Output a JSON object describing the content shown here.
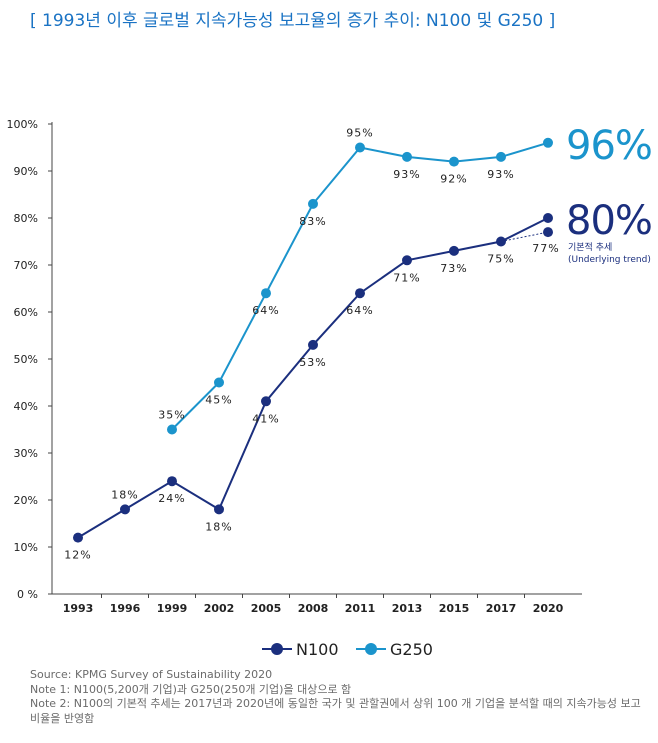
{
  "title": "[ 1993년 이후 글로벌 지속가능성 보고율의 증가 추이: N100 및 G250 ]",
  "chart_data": {
    "type": "line",
    "title": "[ 1993년 이후 글로벌 지속가능성 보고율의 증가 추이: N100 및 G250 ]",
    "categories": [
      "1993",
      "1996",
      "1999",
      "2002",
      "2005",
      "2008",
      "2011",
      "2013",
      "2015",
      "2017",
      "2020"
    ],
    "ylim": [
      0,
      100
    ],
    "yticks": [
      0,
      10,
      20,
      30,
      40,
      50,
      60,
      70,
      80,
      90,
      100
    ],
    "ytick_labels": [
      "0 %",
      "10%",
      "20%",
      "30%",
      "40%",
      "50%",
      "60%",
      "70%",
      "80%",
      "90%",
      "100%"
    ],
    "series": [
      {
        "name": "N100",
        "color": "#1b2f7e",
        "values": [
          12,
          18,
          24,
          18,
          41,
          53,
          64,
          71,
          73,
          75,
          80
        ],
        "labels": [
          "12%",
          "18%",
          "24%",
          "18%",
          "41%",
          "53%",
          "64%",
          "71%",
          "73%",
          "75%",
          null
        ],
        "big_label": "80%"
      },
      {
        "name": "G250",
        "color": "#1b94cc",
        "values": [
          null,
          null,
          35,
          45,
          64,
          83,
          95,
          93,
          92,
          93,
          96
        ],
        "labels": [
          null,
          null,
          "35%",
          "45%",
          "64%",
          "83%",
          "95%",
          "93%",
          "92%",
          "93%",
          null
        ],
        "big_label": "96%"
      }
    ],
    "trend": {
      "value": 77,
      "label": "77%",
      "text_ko": "기본적 추세",
      "text_en": "(Underlying trend)"
    },
    "legend": [
      "N100",
      "G250"
    ]
  },
  "notes": {
    "source": "Source: KPMG Survey of Sustainability 2020",
    "note1": "Note 1: N100(5,200개 기업)과 G250(250개 기업)을 대상으로 함",
    "note2a": "Note 2: N100의 기본적 추세는 2017년과 2020년에 동일한 국가 및 관할권에서 상위 100 개 기업을 분석할 때의 지속가능성 보고",
    "note2b": "비율을 반영함"
  }
}
